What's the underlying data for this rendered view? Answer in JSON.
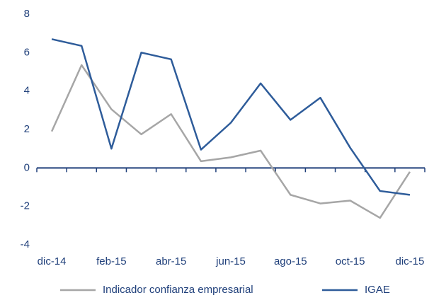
{
  "chart_data": {
    "type": "line",
    "categories": [
      "dic-14",
      null,
      "feb-15",
      null,
      "abr-15",
      null,
      "jun-15",
      null,
      "ago-15",
      null,
      "oct-15",
      null,
      "dic-15"
    ],
    "series": [
      {
        "name": "Indicador confianza empresarial",
        "color": "#a6a6a6",
        "values": [
          1.9,
          5.35,
          3.05,
          1.75,
          2.8,
          0.35,
          0.55,
          0.9,
          -1.4,
          -1.85,
          -1.7,
          -2.6,
          -0.2
        ]
      },
      {
        "name": "IGAE",
        "color": "#2e5c9a",
        "values": [
          6.7,
          6.35,
          1.0,
          6.0,
          5.65,
          0.95,
          2.35,
          4.4,
          2.5,
          3.65,
          1.05,
          -1.2,
          -1.4
        ]
      }
    ],
    "ylim": [
      -4,
      8
    ],
    "yticks": [
      -4,
      -2,
      0,
      2,
      4,
      6,
      8
    ],
    "legend": "bottom"
  }
}
